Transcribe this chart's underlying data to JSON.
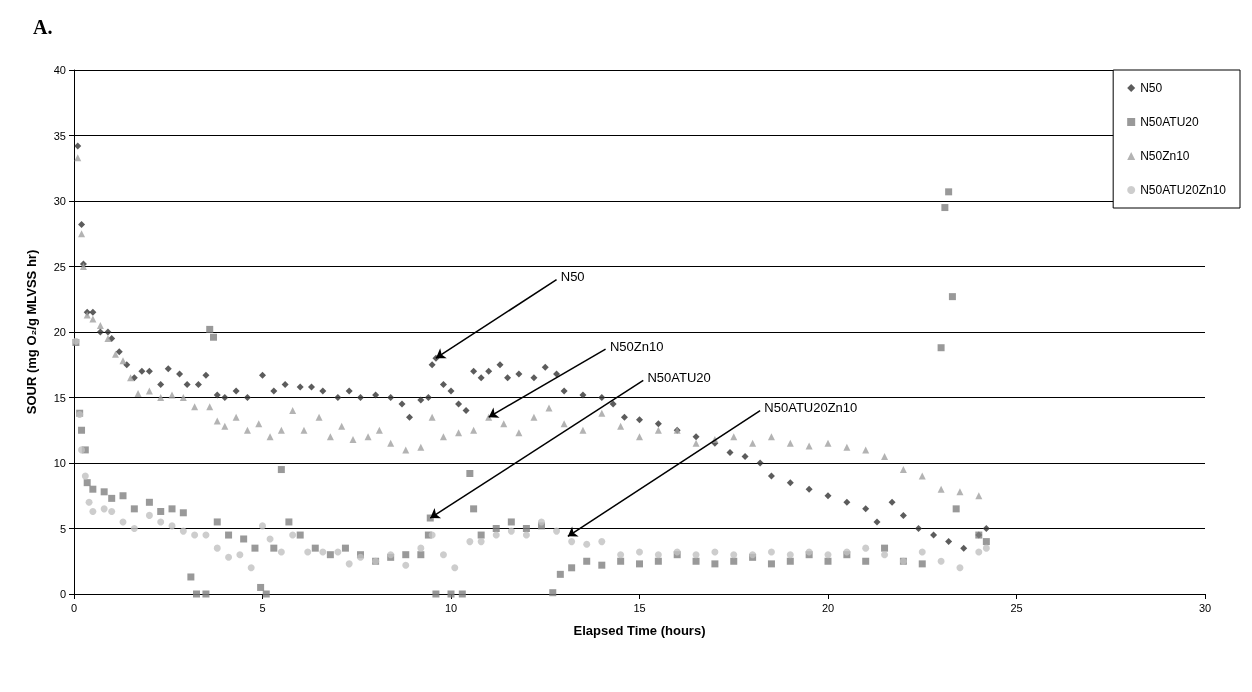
{
  "chart_data": {
    "type": "scatter",
    "title": "A.",
    "xlabel": "Elapsed Time (hours)",
    "ylabel": "SOUR (mg O₂/g MLVSS hr)",
    "xlim": [
      0,
      30
    ],
    "xticks": [
      0,
      5,
      10,
      15,
      20,
      25,
      30
    ],
    "ylim": [
      0,
      40
    ],
    "yticks": [
      0,
      5,
      10,
      15,
      20,
      25,
      30,
      35,
      40
    ],
    "grid": "y",
    "legend": "top right",
    "series": [
      {
        "name": "N50",
        "color": "#333333",
        "marker": "diamond",
        "x": [
          0.1,
          0.2,
          0.25,
          0.35,
          0.5,
          0.7,
          0.9,
          1.0,
          1.2,
          1.4,
          1.6,
          1.8,
          2.0,
          2.3,
          2.5,
          2.8,
          3.0,
          3.3,
          3.5,
          3.8,
          4.0,
          4.3,
          4.6,
          5.0,
          5.3,
          5.6,
          6.0,
          6.3,
          6.6,
          7.0,
          7.3,
          7.6,
          8.0,
          8.4,
          8.7,
          8.9,
          9.2,
          9.4,
          9.5,
          9.6,
          9.8,
          10.0,
          10.2,
          10.4,
          10.6,
          10.8,
          11.0,
          11.3,
          11.5,
          11.8,
          12.2,
          12.5,
          12.8,
          13.0,
          13.5,
          14.0,
          14.3,
          14.6,
          15.0,
          15.5,
          16.0,
          16.5,
          17.0,
          17.4,
          17.8,
          18.2,
          18.5,
          19.0,
          19.5,
          20.0,
          20.5,
          21.0,
          21.3,
          21.7,
          22.0,
          22.4,
          22.8,
          23.2,
          23.6,
          24.0,
          24.2
        ],
        "values": [
          34.2,
          28.2,
          25.2,
          21.5,
          21.5,
          20,
          20,
          19.5,
          18.5,
          17.5,
          16.5,
          17,
          17,
          16,
          17.2,
          16.8,
          16,
          16,
          16.7,
          15.2,
          15,
          15.5,
          15,
          16.7,
          15.5,
          16,
          15.8,
          15.8,
          15.5,
          15,
          15.5,
          15,
          15.2,
          15,
          14.5,
          13.5,
          14.8,
          15,
          17.5,
          18,
          16,
          15.5,
          14.5,
          14,
          17,
          16.5,
          17,
          17.5,
          16.5,
          16.8,
          16.5,
          17.3,
          16.8,
          15.5,
          15.2,
          15,
          14.5,
          13.5,
          13.3,
          13,
          12.5,
          12,
          11.5,
          10.8,
          10.5,
          10,
          9,
          8.5,
          8,
          7.5,
          7,
          6.5,
          5.5,
          7,
          6,
          5,
          4.5,
          4,
          3.5,
          4.5,
          5
        ]
      },
      {
        "name": "N50ATU20",
        "color": "#808080",
        "marker": "square",
        "x": [
          0.05,
          0.15,
          0.2,
          0.3,
          0.35,
          0.5,
          0.8,
          1.0,
          1.3,
          1.6,
          2.0,
          2.3,
          2.6,
          2.9,
          3.1,
          3.25,
          3.5,
          3.6,
          3.7,
          3.8,
          4.1,
          4.5,
          4.8,
          4.95,
          5.1,
          5.3,
          5.5,
          5.7,
          6.0,
          6.4,
          6.8,
          7.2,
          7.6,
          8.0,
          8.4,
          8.8,
          9.2,
          9.4,
          9.45,
          9.6,
          10.0,
          10.3,
          10.5,
          10.6,
          10.8,
          11.2,
          11.6,
          12.0,
          12.4,
          12.7,
          12.9,
          13.2,
          13.6,
          14.0,
          14.5,
          15.0,
          15.5,
          16.0,
          16.5,
          17.0,
          17.5,
          18.0,
          18.5,
          19.0,
          19.5,
          20.0,
          20.5,
          21.0,
          21.5,
          22.0,
          22.5,
          23.0,
          23.1,
          23.2,
          23.3,
          23.4,
          24.0,
          24.2
        ],
        "values": [
          19.2,
          13.8,
          12.5,
          11,
          8.5,
          8,
          7.8,
          7.3,
          7.5,
          6.5,
          7,
          6.3,
          6.5,
          6.2,
          1.3,
          0,
          0,
          20.2,
          19.6,
          5.5,
          4.5,
          4.2,
          3.5,
          0.5,
          0,
          3.5,
          9.5,
          5.5,
          4.5,
          3.5,
          3,
          3.5,
          3,
          2.5,
          2.8,
          3,
          3,
          4.5,
          5.8,
          0,
          0,
          0,
          9.2,
          6.5,
          4.5,
          5,
          5.5,
          5,
          5.2,
          0.1,
          1.5,
          2,
          2.5,
          2.2,
          2.5,
          2.3,
          2.5,
          3,
          2.5,
          2.3,
          2.5,
          2.8,
          2.3,
          2.5,
          3,
          2.5,
          3,
          2.5,
          3.5,
          2.5,
          2.3,
          18.8,
          29.5,
          30.7,
          22.7,
          6.5,
          4.5,
          4
        ]
      },
      {
        "name": "N50Zn10",
        "color": "#a0a0a0",
        "marker": "triangle",
        "x": [
          0.1,
          0.2,
          0.25,
          0.35,
          0.5,
          0.7,
          0.9,
          1.1,
          1.3,
          1.5,
          1.7,
          2.0,
          2.3,
          2.6,
          2.9,
          3.2,
          3.6,
          3.8,
          4.0,
          4.3,
          4.6,
          4.9,
          5.2,
          5.5,
          5.8,
          6.1,
          6.5,
          6.8,
          7.1,
          7.4,
          7.8,
          8.1,
          8.4,
          8.8,
          9.2,
          9.5,
          9.8,
          10.2,
          10.6,
          11.0,
          11.4,
          11.8,
          12.2,
          12.6,
          13.0,
          13.5,
          14.0,
          14.5,
          15.0,
          15.5,
          16.0,
          16.5,
          17.0,
          17.5,
          18.0,
          18.5,
          19.0,
          19.5,
          20.0,
          20.5,
          21.0,
          21.5,
          22.0,
          22.5,
          23.0,
          23.5,
          24.0
        ],
        "values": [
          33.3,
          27.5,
          25,
          21.3,
          21,
          20.5,
          19.5,
          18.3,
          17.8,
          16.5,
          15.3,
          15.5,
          15,
          15.2,
          15,
          14.3,
          14.3,
          13.2,
          12.8,
          13.5,
          12.5,
          13,
          12,
          12.5,
          14,
          12.5,
          13.5,
          12,
          12.8,
          11.8,
          12,
          12.5,
          11.5,
          11,
          11.2,
          13.5,
          12,
          12.3,
          12.5,
          13.5,
          13,
          12.3,
          13.5,
          14.2,
          13,
          12.5,
          13.8,
          12.8,
          12,
          12.5,
          12.5,
          11.5,
          11.8,
          12,
          11.5,
          12,
          11.5,
          11.3,
          11.5,
          11.2,
          11,
          10.5,
          9.5,
          9,
          8,
          7.8,
          7.5
        ]
      },
      {
        "name": "N50ATU20Zn10",
        "color": "#c0c0c0",
        "marker": "circle",
        "x": [
          0.05,
          0.15,
          0.2,
          0.3,
          0.4,
          0.5,
          0.8,
          1.0,
          1.3,
          1.6,
          2.0,
          2.3,
          2.6,
          2.9,
          3.2,
          3.5,
          3.8,
          4.1,
          4.4,
          4.7,
          5.0,
          5.2,
          5.5,
          5.8,
          6.2,
          6.6,
          7.0,
          7.3,
          7.6,
          8.0,
          8.4,
          8.8,
          9.2,
          9.5,
          9.8,
          10.1,
          10.5,
          10.8,
          11.2,
          11.6,
          12.0,
          12.4,
          12.8,
          13.2,
          13.6,
          14.0,
          14.5,
          15.0,
          15.5,
          16.0,
          16.5,
          17.0,
          17.5,
          18.0,
          18.5,
          19.0,
          19.5,
          20.0,
          20.5,
          21.0,
          21.5,
          22.0,
          22.5,
          23.0,
          23.5,
          24.0,
          24.2
        ],
        "values": [
          19.3,
          13.7,
          11,
          9,
          7,
          6.3,
          6.5,
          6.3,
          5.5,
          5,
          6,
          5.5,
          5.2,
          4.8,
          4.5,
          4.5,
          3.5,
          2.8,
          3,
          2,
          5.2,
          4.2,
          3.2,
          4.5,
          3.2,
          3.2,
          3.2,
          2.3,
          2.8,
          2.5,
          3,
          2.2,
          3.5,
          4.5,
          3,
          2,
          4,
          4,
          4.5,
          4.8,
          4.5,
          5.5,
          4.8,
          4,
          3.8,
          4,
          3,
          3.2,
          3,
          3.2,
          3,
          3.2,
          3,
          3,
          3.2,
          3,
          3.2,
          3,
          3.2,
          3.5,
          3,
          2.5,
          3.2,
          2.5,
          2,
          3.2,
          3.5
        ]
      }
    ],
    "annotations": [
      {
        "text": "N50",
        "x": 9.6,
        "y": 18
      },
      {
        "text": "N50Zn10",
        "x": 11.0,
        "y": 13.5
      },
      {
        "text": "N50ATU20",
        "x": 9.45,
        "y": 5.8
      },
      {
        "text": "N50ATU20Zn10",
        "x": 13.1,
        "y": 4.4
      }
    ]
  }
}
